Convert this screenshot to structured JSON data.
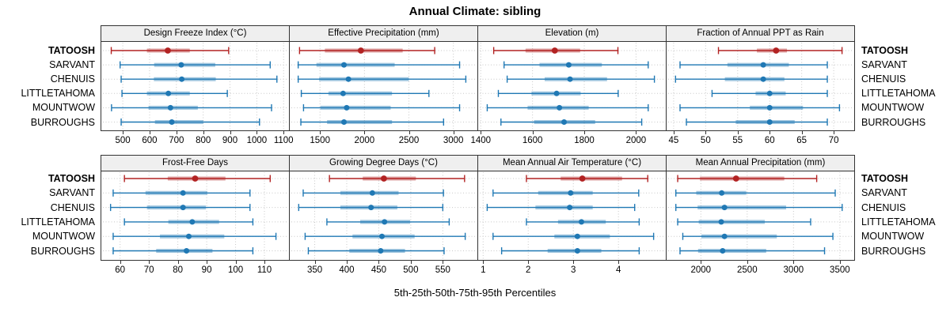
{
  "title": "Annual Climate: sibling",
  "caption": "5th-25th-50th-75th-95th Percentiles",
  "sites": [
    "TATOOSH",
    "SARVANT",
    "CHENUIS",
    "LITTLETAHOMA",
    "MOUNTWOW",
    "BURROUGHS"
  ],
  "highlight_site": "TATOOSH",
  "colors": {
    "highlight": "#B22222",
    "normal": "#1F78B4",
    "grid": "#C8C8C8",
    "border": "#333333",
    "strip_bg": "#EFEFEF"
  },
  "chart_data": {
    "type": "dotplot-interval",
    "glyph": "5-95 whisker with caps, 25-75 band, dot at median",
    "percentiles": [
      5,
      25,
      50,
      75,
      95
    ],
    "legend_position": "none",
    "grid": "dotted",
    "panels": [
      {
        "label": "Design Freeze Index (°C)",
        "xlim": [
          420,
          1120
        ],
        "ticks": [
          500,
          600,
          700,
          800,
          900,
          1000,
          1100
        ],
        "values": {
          "TATOOSH": [
            457,
            590,
            668,
            750,
            895
          ],
          "SARVANT": [
            490,
            617,
            718,
            845,
            1050
          ],
          "CHENUIS": [
            494,
            616,
            720,
            847,
            1075
          ],
          "LITTLETAHOMA": [
            497,
            590,
            670,
            750,
            890
          ],
          "MOUNTWOW": [
            458,
            596,
            678,
            780,
            1055
          ],
          "BURROUGHS": [
            494,
            620,
            683,
            800,
            1010
          ]
        }
      },
      {
        "label": "Effective Precipitation (mm)",
        "xlim": [
          1160,
          3270
        ],
        "ticks": [
          1500,
          2000,
          2500,
          3000
        ],
        "values": {
          "TATOOSH": [
            1270,
            1555,
            1960,
            2430,
            2790
          ],
          "SARVANT": [
            1255,
            1460,
            1770,
            2340,
            3070
          ],
          "CHENUIS": [
            1255,
            1490,
            1820,
            2500,
            3140
          ],
          "LITTLETAHOMA": [
            1290,
            1595,
            1760,
            2310,
            2725
          ],
          "MOUNTWOW": [
            1315,
            1505,
            1800,
            2295,
            3070
          ],
          "BURROUGHS": [
            1285,
            1580,
            1770,
            2310,
            2890
          ]
        }
      },
      {
        "label": "Elevation (m)",
        "xlim": [
          1390,
          2115
        ],
        "ticks": [
          1400,
          1600,
          1800,
          2000
        ],
        "values": {
          "TATOOSH": [
            1450,
            1573,
            1686,
            1784,
            1930
          ],
          "SARVANT": [
            1490,
            1627,
            1740,
            1868,
            2047
          ],
          "CHENUIS": [
            1502,
            1647,
            1745,
            1888,
            2071
          ],
          "LITTLETAHOMA": [
            1468,
            1596,
            1693,
            1786,
            1931
          ],
          "MOUNTWOW": [
            1425,
            1581,
            1704,
            1817,
            2047
          ],
          "BURROUGHS": [
            1478,
            1606,
            1722,
            1842,
            2022
          ]
        }
      },
      {
        "label": "Fraction of Annual PPT as Rain",
        "xlim": [
          43.9,
          73.2
        ],
        "ticks": [
          45,
          50,
          55,
          60,
          65,
          70
        ],
        "values": {
          "TATOOSH": [
            52,
            58,
            61,
            62.7,
            71.3
          ],
          "SARVANT": [
            46,
            53.4,
            59,
            63,
            69
          ],
          "CHENUIS": [
            45.3,
            53,
            59,
            62.3,
            69
          ],
          "LITTLETAHOMA": [
            51,
            57.8,
            60,
            62.5,
            69
          ],
          "MOUNTWOW": [
            46,
            56.9,
            60,
            65.2,
            70.9
          ],
          "BURROUGHS": [
            47,
            54.7,
            60,
            63.9,
            69
          ]
        }
      },
      {
        "label": "Frost-Free Days",
        "xlim": [
          53.5,
          118.5
        ],
        "ticks": [
          60,
          70,
          80,
          90,
          100,
          110
        ],
        "values": {
          "TATOOSH": [
            61.5,
            76.5,
            86,
            96.5,
            112
          ],
          "SARVANT": [
            57.6,
            68.8,
            81.8,
            90.2,
            105
          ],
          "CHENUIS": [
            56.7,
            69.3,
            81.8,
            89.7,
            105
          ],
          "LITTLETAHOMA": [
            61.5,
            76.7,
            85,
            94.3,
            106
          ],
          "MOUNTWOW": [
            57.6,
            73.8,
            83.8,
            96.1,
            114
          ],
          "BURROUGHS": [
            57.6,
            72.5,
            83,
            92,
            106
          ]
        }
      },
      {
        "label": "Growing Degree Days (°C)",
        "xlim": [
          311,
          604
        ],
        "ticks": [
          350,
          400,
          450,
          500,
          550
        ],
        "values": {
          "TATOOSH": [
            373,
            425,
            458,
            508,
            584
          ],
          "SARVANT": [
            332,
            390,
            440,
            481,
            551
          ],
          "CHENUIS": [
            325,
            390,
            438,
            479,
            550
          ],
          "LITTLETAHOMA": [
            369,
            421,
            459,
            499,
            560
          ],
          "MOUNTWOW": [
            335,
            409,
            455,
            506,
            585
          ],
          "BURROUGHS": [
            340,
            404,
            453,
            491,
            552
          ]
        }
      },
      {
        "label": "Mean Annual Air Temperature (°C)",
        "xlim": [
          0.89,
          5.05
        ],
        "ticks": [
          1,
          2,
          3,
          4
        ],
        "values": {
          "TATOOSH": [
            1.96,
            2.72,
            3.2,
            4.08,
            4.65
          ],
          "SARVANT": [
            1.22,
            2.22,
            2.94,
            3.43,
            4.45
          ],
          "CHENUIS": [
            1.09,
            2.16,
            2.92,
            3.43,
            4.36
          ],
          "LITTLETAHOMA": [
            1.96,
            2.66,
            3.18,
            3.72,
            4.46
          ],
          "MOUNTWOW": [
            1.22,
            2.58,
            3.09,
            3.81,
            4.78
          ],
          "BURROUGHS": [
            1.41,
            2.43,
            3.09,
            3.62,
            4.46
          ]
        }
      },
      {
        "label": "Mean Annual Precipitation (mm)",
        "xlim": [
          1630,
          3655
        ],
        "ticks": [
          2000,
          2500,
          3000,
          3500
        ],
        "values": {
          "TATOOSH": [
            1750,
            1990,
            2380,
            2900,
            3250
          ],
          "SARVANT": [
            1730,
            1950,
            2225,
            2490,
            3450
          ],
          "CHENUIS": [
            1730,
            1965,
            2255,
            2920,
            3525
          ],
          "LITTLETAHOMA": [
            1750,
            1977,
            2220,
            2690,
            3185
          ],
          "MOUNTWOW": [
            1805,
            2005,
            2255,
            2820,
            3425
          ],
          "BURROUGHS": [
            1775,
            1970,
            2235,
            2705,
            3335
          ]
        }
      }
    ]
  }
}
